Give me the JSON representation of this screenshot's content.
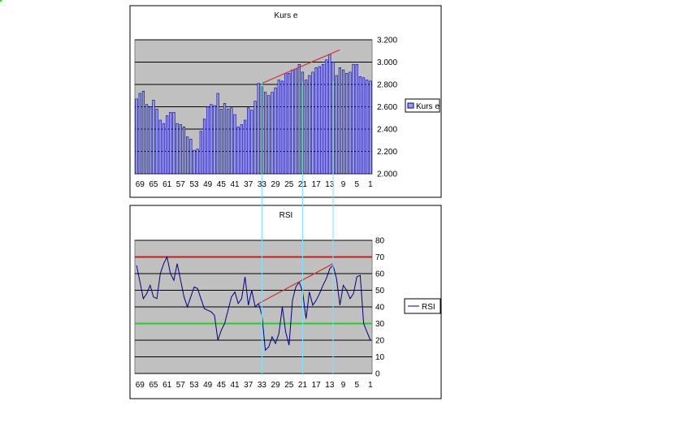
{
  "chart_data": [
    {
      "type": "bar",
      "title": "Kurs e",
      "legend": [
        "Kurs e"
      ],
      "legend_position": "right",
      "x_ticks": [
        "69",
        "65",
        "61",
        "57",
        "53",
        "49",
        "45",
        "41",
        "37",
        "33",
        "29",
        "25",
        "21",
        "17",
        "13",
        "9",
        "5",
        "1"
      ],
      "y_ticks": [
        "2.000",
        "2.200",
        "2.400",
        "2.600",
        "2.800",
        "3.000",
        "3.200"
      ],
      "ylim": [
        2.0,
        3.2
      ],
      "grid": true,
      "x_reversed": true,
      "x": [
        70,
        69,
        68,
        67,
        66,
        65,
        64,
        63,
        62,
        61,
        60,
        59,
        58,
        57,
        56,
        55,
        54,
        53,
        52,
        51,
        50,
        49,
        48,
        47,
        46,
        45,
        44,
        43,
        42,
        41,
        40,
        39,
        38,
        37,
        36,
        35,
        34,
        33,
        32,
        31,
        30,
        29,
        28,
        27,
        26,
        25,
        24,
        23,
        22,
        21,
        20,
        19,
        18,
        17,
        16,
        15,
        14,
        13,
        12,
        11,
        10,
        9,
        8,
        7,
        6,
        5,
        4,
        3,
        2,
        1
      ],
      "values": [
        2.67,
        2.72,
        2.74,
        2.62,
        2.6,
        2.66,
        2.58,
        2.48,
        2.45,
        2.52,
        2.55,
        2.55,
        2.45,
        2.44,
        2.42,
        2.33,
        2.31,
        2.21,
        2.22,
        2.38,
        2.49,
        2.6,
        2.62,
        2.61,
        2.72,
        2.58,
        2.63,
        2.58,
        2.59,
        2.53,
        2.42,
        2.44,
        2.48,
        2.59,
        2.57,
        2.65,
        2.81,
        2.78,
        2.73,
        2.7,
        2.73,
        2.77,
        2.84,
        2.83,
        2.9,
        2.9,
        2.93,
        2.94,
        2.98,
        2.91,
        2.84,
        2.88,
        2.91,
        2.95,
        2.96,
        2.98,
        3.02,
        3.07,
        3.0,
        2.88,
        2.95,
        2.93,
        2.9,
        2.91,
        2.98,
        2.98,
        2.87,
        2.86,
        2.84,
        2.83
      ],
      "trendline": {
        "from": {
          "x": 33,
          "y": 2.81
        },
        "to": {
          "x": 10,
          "y": 3.11
        },
        "color": "#d03030"
      }
    },
    {
      "type": "line",
      "title": "RSI",
      "legend": [
        "RSI"
      ],
      "legend_position": "right",
      "x_ticks": [
        "69",
        "65",
        "61",
        "57",
        "53",
        "49",
        "45",
        "41",
        "37",
        "33",
        "29",
        "25",
        "21",
        "17",
        "13",
        "9",
        "5",
        "1"
      ],
      "y_ticks": [
        "0",
        "10",
        "20",
        "30",
        "40",
        "50",
        "60",
        "70",
        "80"
      ],
      "ylim": [
        0,
        80
      ],
      "grid": true,
      "x_reversed": true,
      "x": [
        70,
        69,
        68,
        67,
        66,
        65,
        64,
        63,
        62,
        61,
        60,
        59,
        58,
        57,
        56,
        55,
        54,
        53,
        52,
        51,
        50,
        49,
        48,
        47,
        46,
        45,
        44,
        43,
        42,
        41,
        40,
        39,
        38,
        37,
        36,
        35,
        34,
        33,
        32,
        31,
        30,
        29,
        28,
        27,
        26,
        25,
        24,
        23,
        22,
        21,
        20,
        19,
        18,
        17,
        16,
        15,
        14,
        13,
        12,
        11,
        10,
        9,
        8,
        7,
        6,
        5,
        4,
        3,
        2,
        1
      ],
      "values": [
        65,
        55,
        45,
        48,
        53,
        46,
        45,
        60,
        66,
        70,
        60,
        56,
        66,
        56,
        46,
        40,
        46,
        52,
        51,
        45,
        39,
        38,
        37,
        35,
        20,
        26,
        30,
        38,
        46,
        49,
        42,
        45,
        58,
        41,
        50,
        40,
        42,
        35,
        14,
        16,
        22,
        18,
        24,
        40,
        25,
        17,
        44,
        52,
        55,
        49,
        33,
        49,
        41,
        44,
        48,
        53,
        57,
        63,
        65,
        57,
        41,
        53,
        50,
        45,
        48,
        58,
        59,
        30,
        25,
        20
      ],
      "reference_lines": [
        {
          "value": 70,
          "color": "#c02020"
        },
        {
          "value": 30,
          "color": "#20d020"
        }
      ],
      "trendline": {
        "from": {
          "x": 34,
          "y": 42
        },
        "to": {
          "x": 12,
          "y": 66
        },
        "color": "#d03030"
      }
    }
  ],
  "connectors": {
    "x": [
      33,
      21,
      12
    ],
    "color": "#80e0ff"
  },
  "colors": {
    "plot_bg": "#c0c0c0",
    "bar_fill": "#9999ff",
    "bar_edge": "#000080",
    "rsi_line": "#000080",
    "marker": "#00ff00"
  }
}
